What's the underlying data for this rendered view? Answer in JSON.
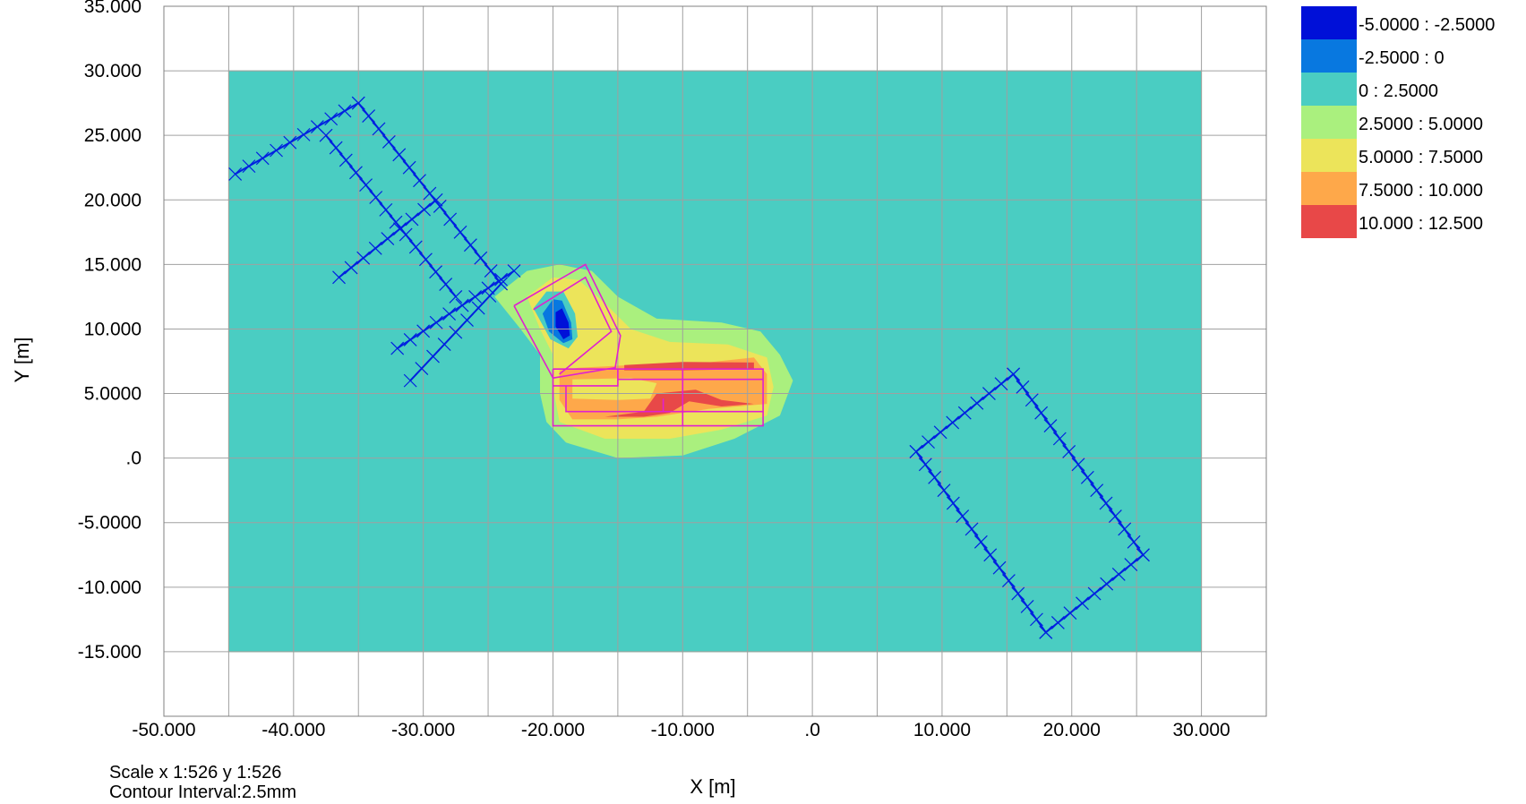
{
  "chart_data": {
    "type": "heatmap",
    "title": "",
    "xlabel": "X [m]",
    "ylabel": "Y [m]",
    "xlim": [
      -50,
      35
    ],
    "ylim": [
      -20,
      35
    ],
    "x_ticks": [
      {
        "value": -50,
        "label": "-50.000"
      },
      {
        "value": -40,
        "label": "-40.000"
      },
      {
        "value": -30,
        "label": "-30.000"
      },
      {
        "value": -20,
        "label": "-20.000"
      },
      {
        "value": -10,
        "label": "-10.000"
      },
      {
        "value": 0,
        "label": ".0"
      },
      {
        "value": 10,
        "label": "10.000"
      },
      {
        "value": 20,
        "label": "20.000"
      },
      {
        "value": 30,
        "label": "30.000"
      }
    ],
    "y_ticks": [
      {
        "value": 35,
        "label": "35.000"
      },
      {
        "value": 30,
        "label": "30.000"
      },
      {
        "value": 25,
        "label": "25.000"
      },
      {
        "value": 20,
        "label": "20.000"
      },
      {
        "value": 15,
        "label": "15.000"
      },
      {
        "value": 10,
        "label": "10.000"
      },
      {
        "value": 5,
        "label": "5.0000"
      },
      {
        "value": 0,
        "label": ".0"
      },
      {
        "value": -5,
        "label": "-5.0000"
      },
      {
        "value": -10,
        "label": "-10.000"
      },
      {
        "value": -15,
        "label": "-15.000"
      }
    ],
    "grid": true,
    "grid_step": 5,
    "domain_extent": {
      "x": [
        -45,
        30
      ],
      "y": [
        -15,
        30
      ]
    },
    "legend_position": "top-right",
    "legend": [
      {
        "label": "-5.0000 : -2.5000",
        "color": "#0010d8"
      },
      {
        "label": "-2.5000 : 0",
        "color": "#0878e0"
      },
      {
        "label": "0 : 2.5000",
        "color": "#4acdc2"
      },
      {
        "label": "2.5000 : 5.0000",
        "color": "#aaf07e"
      },
      {
        "label": "5.0000 : 7.5000",
        "color": "#ece45a"
      },
      {
        "label": "7.5000 : 10.000",
        "color": "#fea84a"
      },
      {
        "label": "10.000 : 12.500",
        "color": "#e84848"
      }
    ],
    "contour_regions": [
      {
        "level": "2.5000 : 5.0000",
        "points": [
          [
            -24.5,
            12.5
          ],
          [
            -22,
            14.5
          ],
          [
            -19.5,
            15
          ],
          [
            -17,
            14.5
          ],
          [
            -15,
            12.5
          ],
          [
            -12,
            10.8
          ],
          [
            -7,
            10.5
          ],
          [
            -4,
            9.8
          ],
          [
            -2.5,
            8
          ],
          [
            -1.5,
            6
          ],
          [
            -2.5,
            3.3
          ],
          [
            -6,
            1.5
          ],
          [
            -10,
            0.2
          ],
          [
            -15,
            0
          ],
          [
            -19,
            1.2
          ],
          [
            -20.5,
            2.8
          ],
          [
            -21,
            5
          ],
          [
            -21,
            8
          ],
          [
            -22.5,
            10
          ]
        ]
      },
      {
        "level": "5.0000 : 7.5000",
        "points": [
          [
            -22,
            12.5
          ],
          [
            -20,
            14
          ],
          [
            -18,
            13.8
          ],
          [
            -16,
            12
          ],
          [
            -14,
            10
          ],
          [
            -11,
            9
          ],
          [
            -6.5,
            8.8
          ],
          [
            -3.5,
            7.8
          ],
          [
            -3,
            5.5
          ],
          [
            -3.5,
            3.3
          ],
          [
            -7,
            2.2
          ],
          [
            -11,
            1.5
          ],
          [
            -16,
            1.5
          ],
          [
            -19.5,
            2.8
          ],
          [
            -20,
            5.5
          ],
          [
            -20,
            8
          ],
          [
            -21,
            10
          ]
        ]
      },
      {
        "level": "7.5000 : 10.000",
        "points": [
          [
            -19.5,
            6.8
          ],
          [
            -18,
            7
          ],
          [
            -14,
            7.2
          ],
          [
            -10,
            7.2
          ],
          [
            -4.5,
            7.8
          ],
          [
            -3.5,
            6.5
          ],
          [
            -3.5,
            4.2
          ],
          [
            -8,
            3.8
          ],
          [
            -12,
            3.2
          ],
          [
            -15,
            3
          ],
          [
            -18.5,
            3
          ],
          [
            -19.5,
            4.5
          ]
        ]
      },
      {
        "level": "5.0000 : 7.5000",
        "points": [
          [
            -18.5,
            6.1
          ],
          [
            -14,
            6.2
          ],
          [
            -12,
            5.8
          ],
          [
            -12.5,
            4.6
          ],
          [
            -15,
            4.5
          ],
          [
            -18.5,
            4.6
          ]
        ]
      },
      {
        "level": "10.000 : 12.500",
        "points": [
          [
            -14.5,
            7.2
          ],
          [
            -10,
            7.45
          ],
          [
            -4.5,
            7.4
          ],
          [
            -4.5,
            6.9
          ],
          [
            -10,
            6.8
          ],
          [
            -14.5,
            6.8
          ]
        ]
      },
      {
        "level": "10.000 : 12.500",
        "points": [
          [
            -12,
            5
          ],
          [
            -9,
            5.3
          ],
          [
            -7,
            4.5
          ],
          [
            -4.5,
            4.2
          ],
          [
            -7,
            4
          ],
          [
            -9.5,
            4.4
          ],
          [
            -11,
            3.5
          ],
          [
            -13,
            3.2
          ],
          [
            -16,
            3.2
          ],
          [
            -13,
            3.6
          ]
        ]
      },
      {
        "level": "0 : 2.5000",
        "points": [
          [
            -21.5,
            11.6
          ],
          [
            -20.5,
            12.9
          ],
          [
            -19.2,
            12.9
          ],
          [
            -18.3,
            11.2
          ],
          [
            -18.1,
            9.4
          ],
          [
            -18.8,
            8.5
          ],
          [
            -20.2,
            9.2
          ]
        ]
      },
      {
        "level": "-2.5000 : 0",
        "points": [
          [
            -20.8,
            11.2
          ],
          [
            -20,
            12.3
          ],
          [
            -19.3,
            12.2
          ],
          [
            -18.6,
            10.5
          ],
          [
            -18.5,
            9.2
          ],
          [
            -19.2,
            8.9
          ],
          [
            -20.3,
            9.8
          ]
        ]
      },
      {
        "level": "-5.0000 : -2.5000",
        "points": [
          [
            -19.8,
            11.3
          ],
          [
            -19.3,
            11.6
          ],
          [
            -18.8,
            10.5
          ],
          [
            -18.7,
            9.5
          ],
          [
            -19.2,
            9.2
          ],
          [
            -19.8,
            10.2
          ]
        ]
      }
    ],
    "overlays": [
      {
        "kind": "polyline",
        "color": "#e020d0",
        "points": [
          [
            -23,
            11.8
          ],
          [
            -17.5,
            15
          ],
          [
            -14.8,
            9.5
          ],
          [
            -15.2,
            7
          ],
          [
            -20,
            6.2
          ],
          [
            -23,
            11.8
          ]
        ]
      },
      {
        "kind": "polyline",
        "color": "#e020d0",
        "points": [
          [
            -21.5,
            11.5
          ],
          [
            -17.5,
            14
          ],
          [
            -15.5,
            9.8
          ],
          [
            -19.5,
            6.5
          ]
        ]
      },
      {
        "kind": "polyline",
        "color": "#e020d0",
        "points": [
          [
            -20,
            6.9
          ],
          [
            -3.8,
            6.9
          ],
          [
            -3.8,
            2.5
          ],
          [
            -20,
            2.5
          ],
          [
            -20,
            6.9
          ]
        ]
      },
      {
        "kind": "polyline",
        "color": "#e020d0",
        "points": [
          [
            -10,
            6.9
          ],
          [
            -10,
            2.5
          ]
        ]
      },
      {
        "kind": "polyline",
        "color": "#e020d0",
        "points": [
          [
            -15,
            6.9
          ],
          [
            -15,
            5.6
          ],
          [
            -20,
            5.6
          ]
        ]
      },
      {
        "kind": "polyline",
        "color": "#e020d0",
        "points": [
          [
            -11.5,
            4.6
          ],
          [
            -11.5,
            3.6
          ],
          [
            -3.8,
            3.6
          ]
        ]
      },
      {
        "kind": "polyline",
        "color": "#e020d0",
        "points": [
          [
            -19,
            5.6
          ],
          [
            -19,
            3.6
          ],
          [
            -11.5,
            3.6
          ]
        ]
      },
      {
        "kind": "polyline",
        "color": "#e020d0",
        "points": [
          [
            -10,
            6.1
          ],
          [
            -3.8,
            6.1
          ]
        ]
      },
      {
        "kind": "polyline",
        "color": "#e020d0",
        "points": [
          [
            -15,
            6.1
          ],
          [
            -10,
            6.1
          ]
        ]
      },
      {
        "kind": "hatched",
        "color": "#0020e0",
        "points": [
          [
            -44.5,
            22
          ],
          [
            -35,
            27.5
          ],
          [
            -24,
            13.5
          ],
          [
            -31,
            6
          ]
        ]
      },
      {
        "kind": "hatched",
        "color": "#0020e0",
        "points": [
          [
            -37.5,
            25
          ],
          [
            -27.5,
            12.5
          ]
        ]
      },
      {
        "kind": "hatched",
        "color": "#0020e0",
        "points": [
          [
            -36.5,
            14
          ],
          [
            -29,
            20
          ]
        ]
      },
      {
        "kind": "hatched",
        "color": "#0020e0",
        "points": [
          [
            -32,
            8.5
          ],
          [
            -23,
            14.5
          ]
        ]
      },
      {
        "kind": "hatched",
        "color": "#0020e0",
        "points": [
          [
            8,
            0.5
          ],
          [
            15.5,
            6.5
          ],
          [
            25.5,
            -7.5
          ],
          [
            18,
            -13.5
          ],
          [
            8,
            0.5
          ]
        ]
      }
    ]
  },
  "footer": {
    "scale": "Scale x 1:526  y 1:526",
    "contour_interval": "Contour Interval:2.5mm"
  }
}
